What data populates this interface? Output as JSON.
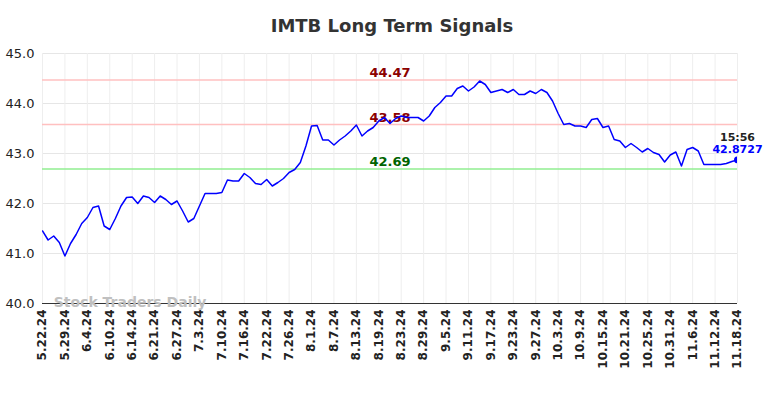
{
  "chart_data": {
    "type": "line",
    "title": "IMTB Long Term Signals",
    "categories": [
      "5.22.24",
      null,
      null,
      null,
      "5.29.24",
      null,
      null,
      null,
      "6.4.24",
      null,
      null,
      null,
      "6.10.24",
      null,
      null,
      null,
      "6.14.24",
      null,
      null,
      null,
      "6.21.24",
      null,
      null,
      null,
      "6.27.24",
      null,
      null,
      null,
      "7.3.24",
      null,
      null,
      null,
      "7.10.24",
      null,
      null,
      null,
      "7.16.24",
      null,
      null,
      null,
      "7.22.24",
      null,
      null,
      null,
      "7.26.24",
      null,
      null,
      null,
      "8.1.24",
      null,
      null,
      null,
      "8.7.24",
      null,
      null,
      null,
      "8.13.24",
      null,
      null,
      null,
      "8.19.24",
      null,
      null,
      null,
      "8.23.24",
      null,
      null,
      null,
      "8.29.24",
      null,
      null,
      null,
      "9.5.24",
      null,
      null,
      null,
      "9.11.24",
      null,
      null,
      null,
      "9.17.24",
      null,
      null,
      null,
      "9.23.24",
      null,
      null,
      null,
      "9.27.24",
      null,
      null,
      null,
      "10.3.24",
      null,
      null,
      null,
      "10.9.24",
      null,
      null,
      null,
      "10.15.24",
      null,
      null,
      null,
      "10.21.24",
      null,
      null,
      null,
      "10.25.24",
      null,
      null,
      null,
      "10.31.24",
      null,
      null,
      null,
      "11.6.24",
      null,
      null,
      null,
      "11.12.24",
      null,
      null,
      null,
      "11.18.24"
    ],
    "values": [
      41.45,
      41.27,
      41.35,
      41.22,
      40.95,
      41.2,
      41.38,
      41.6,
      41.72,
      41.92,
      41.95,
      41.55,
      41.48,
      41.7,
      41.95,
      42.12,
      42.13,
      42.0,
      42.15,
      42.12,
      42.02,
      42.15,
      42.08,
      41.98,
      42.05,
      41.85,
      41.63,
      41.7,
      41.95,
      42.2,
      42.2,
      42.2,
      42.22,
      42.47,
      42.45,
      42.45,
      42.6,
      42.52,
      42.4,
      42.38,
      42.48,
      42.35,
      42.42,
      42.5,
      42.62,
      42.68,
      42.82,
      43.15,
      43.55,
      43.56,
      43.27,
      43.27,
      43.17,
      43.27,
      43.35,
      43.45,
      43.57,
      43.35,
      43.45,
      43.52,
      43.65,
      43.72,
      43.6,
      43.7,
      43.75,
      43.72,
      43.72,
      43.72,
      43.65,
      43.75,
      43.92,
      44.02,
      44.15,
      44.15,
      44.3,
      44.35,
      44.25,
      44.33,
      44.45,
      44.38,
      44.22,
      44.25,
      44.28,
      44.22,
      44.28,
      44.18,
      44.18,
      44.25,
      44.2,
      44.28,
      44.22,
      44.05,
      43.8,
      43.58,
      43.6,
      43.55,
      43.55,
      43.52,
      43.68,
      43.7,
      43.52,
      43.55,
      43.28,
      43.25,
      43.12,
      43.2,
      43.12,
      43.03,
      43.1,
      43.02,
      42.98,
      42.83,
      42.97,
      43.03,
      42.75,
      43.08,
      43.12,
      43.05,
      42.78,
      42.78,
      42.78,
      42.78,
      42.8,
      42.84,
      42.8727
    ],
    "color": "#0000ff",
    "ylim": [
      40,
      45
    ],
    "yticks": [
      40,
      41,
      42,
      43,
      44,
      45
    ],
    "grid": true,
    "levels": [
      {
        "value": 44.47,
        "color": "#8b0000"
      },
      {
        "value": 43.58,
        "color": "#8b0000"
      },
      {
        "value": 42.69,
        "color": "#006400"
      }
    ],
    "last_point_label": "15:56",
    "watermark": "Stock Traders Daily"
  }
}
